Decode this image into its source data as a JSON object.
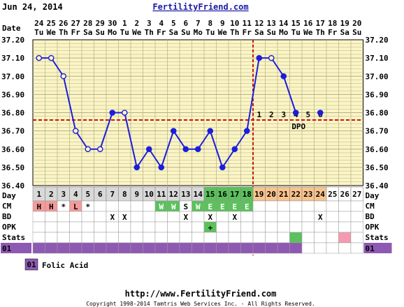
{
  "header": {
    "date": "Jun 24, 2014",
    "site": "FertilityFriend.com"
  },
  "footer": {
    "url": "http://www.FertilityFriend.com",
    "copyright": "Copyright 1998-2014 Tamtris Web Services Inc. - All Rights Reserved."
  },
  "legend": {
    "badge": "01",
    "label": "Folic Acid"
  },
  "row_labels": {
    "date": "Date",
    "day": "Day",
    "cm": "CM",
    "bd": "BD",
    "opk": "OPK",
    "stats": "Stats",
    "med": "01"
  },
  "colors": {
    "plot_background": "#fbf5c4",
    "grid_line": "#b4b08c",
    "temperature_line": "#1d1ddc",
    "coverline": "#cc1111",
    "ovulation_line": "#cc1111",
    "day_cell_default": "#d9d9d9",
    "day_cell_fertile": "#5cc15c",
    "day_cell_luteal": "#f8c48d",
    "cm_bleeding": "#f59a9a",
    "cm_fertile": "#5cc15c",
    "stats_green": "#5cc15c",
    "stats_pink": "#f59ab0",
    "medication": "#8e59b2",
    "outer_background": "#ffffff"
  },
  "chart_data": {
    "type": "line",
    "ylim": [
      36.4,
      37.2
    ],
    "y_ticks": [
      "37.20",
      "37.10",
      "37.00",
      "36.90",
      "36.80",
      "36.70",
      "36.60",
      "36.50",
      "36.40"
    ],
    "dates": [
      "24",
      "25",
      "26",
      "27",
      "28",
      "29",
      "30",
      "1",
      "2",
      "3",
      "4",
      "5",
      "6",
      "7",
      "8",
      "9",
      "10",
      "11",
      "12",
      "13",
      "14",
      "15",
      "16",
      "17",
      "18",
      "19",
      "20"
    ],
    "weekdays": [
      "Tu",
      "We",
      "Th",
      "Fr",
      "Sa",
      "Su",
      "Mo",
      "Tu",
      "We",
      "Th",
      "Fr",
      "Sa",
      "Su",
      "Mo",
      "Tu",
      "We",
      "Th",
      "Fr",
      "Sa",
      "Su",
      "Mo",
      "Tu",
      "We",
      "Th",
      "Fr",
      "Sa",
      "Su"
    ],
    "cycle_days": [
      "1",
      "2",
      "3",
      "4",
      "5",
      "6",
      "7",
      "8",
      "9",
      "10",
      "11",
      "12",
      "13",
      "14",
      "15",
      "16",
      "17",
      "18",
      "19",
      "20",
      "21",
      "22",
      "23",
      "24",
      "25",
      "26",
      "27"
    ],
    "series": [
      {
        "values": [
          37.1,
          37.1,
          37.0,
          36.7,
          36.6,
          36.6,
          36.8,
          36.8,
          36.5,
          36.6,
          36.5,
          36.7,
          36.6,
          36.6,
          36.7,
          36.5,
          36.6,
          36.7,
          37.1,
          37.1,
          37.0,
          36.8,
          null,
          36.8,
          null,
          null,
          null
        ],
        "open_marker": [
          true,
          true,
          true,
          true,
          true,
          true,
          false,
          true,
          false,
          false,
          false,
          false,
          false,
          false,
          false,
          false,
          false,
          false,
          false,
          true,
          false,
          false,
          null,
          false,
          null,
          null,
          null
        ]
      }
    ],
    "coverline": 36.76,
    "ovulation_day": 18,
    "dpo_numbers": [
      "1",
      "2",
      "3",
      "4",
      "5",
      "6"
    ],
    "dpo_label": "DPO",
    "day_cell_types": [
      "g",
      "g",
      "g",
      "g",
      "g",
      "g",
      "g",
      "g",
      "g",
      "g",
      "g",
      "g",
      "g",
      "g",
      "f",
      "f",
      "f",
      "f",
      "l",
      "l",
      "l",
      "l",
      "l",
      "l",
      "w",
      "w",
      "w"
    ],
    "cm": [
      "H",
      "H",
      "*",
      "L",
      "*",
      "",
      "",
      "",
      "",
      "",
      "W",
      "W",
      "S",
      "W",
      "E",
      "E",
      "E",
      "E",
      "",
      "",
      "",
      "",
      "",
      "",
      "",
      "",
      ""
    ],
    "cm_colors": [
      "b",
      "b",
      "",
      "b",
      "",
      "",
      "",
      "",
      "",
      "",
      "f",
      "f",
      "",
      "f",
      "f",
      "f",
      "f",
      "f",
      "",
      "",
      "",
      "",
      "",
      "",
      "",
      "",
      ""
    ],
    "bd": [
      "",
      "",
      "",
      "",
      "",
      "",
      "X",
      "X",
      "",
      "",
      "",
      "",
      "X",
      "",
      "X",
      "",
      "X",
      "",
      "",
      "",
      "",
      "",
      "",
      "X",
      "",
      "",
      ""
    ],
    "opk": [
      "",
      "",
      "",
      "",
      "",
      "",
      "",
      "",
      "",
      "",
      "",
      "",
      "",
      "",
      "+",
      "",
      "",
      "",
      "",
      "",
      "",
      "",
      "",
      "",
      "",
      "",
      ""
    ],
    "stats": [
      "",
      "",
      "",
      "",
      "",
      "",
      "",
      "",
      "",
      "",
      "",
      "",
      "",
      "",
      "",
      "",
      "",
      "",
      "",
      "",
      "",
      "g",
      "",
      "",
      "",
      "p",
      ""
    ],
    "medication_days": 22,
    "grid": true
  }
}
